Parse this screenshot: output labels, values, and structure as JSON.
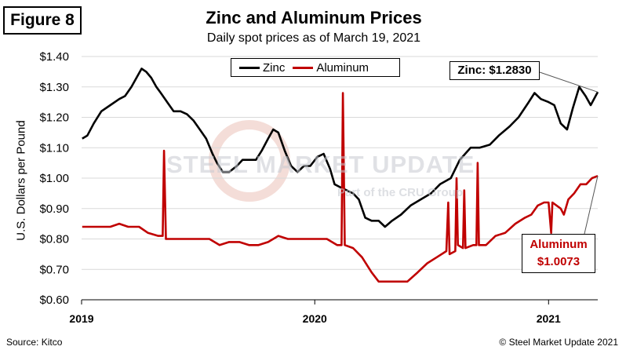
{
  "figure_label": "Figure 8",
  "source": "Source: Kitco",
  "copyright": "© Steel Market Update 2021",
  "watermark": {
    "main": "STEEL MARKET UPDATE",
    "sub": "Part of the CRU Group"
  },
  "callouts": {
    "zinc": "Zinc: $1.2830",
    "aluminum_line1": "Aluminum",
    "aluminum_line2": "$1.0073"
  },
  "colors": {
    "zinc": "#000000",
    "aluminum": "#c00000"
  },
  "chart_data": {
    "type": "line",
    "title": "Zinc and Aluminum Prices",
    "subtitle": "Daily spot prices as of March 19, 2021",
    "ylabel": "U.S. Dollars per Pound",
    "xlabel": "",
    "ylim": [
      0.6,
      1.4
    ],
    "yticks": [
      0.6,
      0.7,
      0.8,
      0.9,
      1.0,
      1.1,
      1.2,
      1.3,
      1.4
    ],
    "ytick_labels": [
      "$0.60",
      "$0.70",
      "$0.80",
      "$0.90",
      "$1.00",
      "$1.10",
      "$1.20",
      "$1.30",
      "$1.40"
    ],
    "xlim": [
      "2019-01-01",
      "2021-03-19"
    ],
    "xticks": [
      "2019-01-01",
      "2020-01-01",
      "2021-01-01"
    ],
    "xtick_labels": [
      "2019",
      "2020",
      "2021"
    ],
    "grid": "horizontal",
    "legend": "top-center",
    "series": [
      {
        "name": "Zinc",
        "color": "#000000",
        "points": [
          [
            "2019-01-02",
            1.13
          ],
          [
            "2019-01-10",
            1.14
          ],
          [
            "2019-01-20",
            1.18
          ],
          [
            "2019-02-01",
            1.22
          ],
          [
            "2019-02-15",
            1.24
          ],
          [
            "2019-03-01",
            1.26
          ],
          [
            "2019-03-10",
            1.27
          ],
          [
            "2019-03-20",
            1.3
          ],
          [
            "2019-03-28",
            1.33
          ],
          [
            "2019-04-05",
            1.36
          ],
          [
            "2019-04-12",
            1.35
          ],
          [
            "2019-04-20",
            1.33
          ],
          [
            "2019-04-28",
            1.3
          ],
          [
            "2019-05-05",
            1.28
          ],
          [
            "2019-05-15",
            1.25
          ],
          [
            "2019-05-25",
            1.22
          ],
          [
            "2019-06-05",
            1.22
          ],
          [
            "2019-06-15",
            1.21
          ],
          [
            "2019-06-25",
            1.19
          ],
          [
            "2019-07-05",
            1.16
          ],
          [
            "2019-07-15",
            1.13
          ],
          [
            "2019-07-25",
            1.08
          ],
          [
            "2019-08-01",
            1.05
          ],
          [
            "2019-08-10",
            1.02
          ],
          [
            "2019-08-20",
            1.02
          ],
          [
            "2019-09-01",
            1.04
          ],
          [
            "2019-09-10",
            1.06
          ],
          [
            "2019-09-20",
            1.06
          ],
          [
            "2019-10-01",
            1.06
          ],
          [
            "2019-10-10",
            1.09
          ],
          [
            "2019-10-20",
            1.13
          ],
          [
            "2019-10-28",
            1.16
          ],
          [
            "2019-11-05",
            1.15
          ],
          [
            "2019-11-15",
            1.09
          ],
          [
            "2019-11-25",
            1.04
          ],
          [
            "2019-12-05",
            1.02
          ],
          [
            "2019-12-15",
            1.04
          ],
          [
            "2019-12-25",
            1.04
          ],
          [
            "2020-01-05",
            1.07
          ],
          [
            "2020-01-15",
            1.08
          ],
          [
            "2020-01-25",
            1.03
          ],
          [
            "2020-02-01",
            0.98
          ],
          [
            "2020-02-10",
            0.97
          ],
          [
            "2020-02-20",
            0.96
          ],
          [
            "2020-03-01",
            0.95
          ],
          [
            "2020-03-10",
            0.93
          ],
          [
            "2020-03-20",
            0.87
          ],
          [
            "2020-03-30",
            0.86
          ],
          [
            "2020-04-10",
            0.86
          ],
          [
            "2020-04-20",
            0.84
          ],
          [
            "2020-05-01",
            0.86
          ],
          [
            "2020-05-15",
            0.88
          ],
          [
            "2020-05-30",
            0.91
          ],
          [
            "2020-06-15",
            0.93
          ],
          [
            "2020-07-01",
            0.95
          ],
          [
            "2020-07-15",
            0.98
          ],
          [
            "2020-08-01",
            1.0
          ],
          [
            "2020-08-15",
            1.06
          ],
          [
            "2020-09-01",
            1.1
          ],
          [
            "2020-09-15",
            1.1
          ],
          [
            "2020-10-01",
            1.11
          ],
          [
            "2020-10-15",
            1.14
          ],
          [
            "2020-11-01",
            1.17
          ],
          [
            "2020-11-15",
            1.2
          ],
          [
            "2020-12-01",
            1.25
          ],
          [
            "2020-12-10",
            1.28
          ],
          [
            "2020-12-20",
            1.26
          ],
          [
            "2021-01-01",
            1.25
          ],
          [
            "2021-01-10",
            1.24
          ],
          [
            "2021-01-20",
            1.18
          ],
          [
            "2021-01-30",
            1.16
          ],
          [
            "2021-02-08",
            1.23
          ],
          [
            "2021-02-18",
            1.3
          ],
          [
            "2021-02-28",
            1.27
          ],
          [
            "2021-03-08",
            1.24
          ],
          [
            "2021-03-19",
            1.283
          ]
        ]
      },
      {
        "name": "Aluminum",
        "color": "#c00000",
        "points": [
          [
            "2019-01-02",
            0.84
          ],
          [
            "2019-01-15",
            0.84
          ],
          [
            "2019-02-01",
            0.84
          ],
          [
            "2019-02-15",
            0.84
          ],
          [
            "2019-03-01",
            0.85
          ],
          [
            "2019-03-15",
            0.84
          ],
          [
            "2019-04-01",
            0.84
          ],
          [
            "2019-04-15",
            0.82
          ],
          [
            "2019-05-01",
            0.81
          ],
          [
            "2019-05-08",
            0.81
          ],
          [
            "2019-05-10",
            1.09
          ],
          [
            "2019-05-13",
            0.8
          ],
          [
            "2019-05-25",
            0.8
          ],
          [
            "2019-06-05",
            0.8
          ],
          [
            "2019-06-20",
            0.8
          ],
          [
            "2019-07-05",
            0.8
          ],
          [
            "2019-07-20",
            0.8
          ],
          [
            "2019-08-05",
            0.78
          ],
          [
            "2019-08-20",
            0.79
          ],
          [
            "2019-09-05",
            0.79
          ],
          [
            "2019-09-20",
            0.78
          ],
          [
            "2019-10-05",
            0.78
          ],
          [
            "2019-10-20",
            0.79
          ],
          [
            "2019-11-05",
            0.81
          ],
          [
            "2019-11-20",
            0.8
          ],
          [
            "2019-12-05",
            0.8
          ],
          [
            "2019-12-20",
            0.8
          ],
          [
            "2020-01-05",
            0.8
          ],
          [
            "2020-01-20",
            0.8
          ],
          [
            "2020-02-05",
            0.78
          ],
          [
            "2020-02-12",
            0.78
          ],
          [
            "2020-02-14",
            1.28
          ],
          [
            "2020-02-17",
            0.78
          ],
          [
            "2020-03-01",
            0.77
          ],
          [
            "2020-03-15",
            0.74
          ],
          [
            "2020-03-30",
            0.69
          ],
          [
            "2020-04-10",
            0.66
          ],
          [
            "2020-04-25",
            0.66
          ],
          [
            "2020-05-10",
            0.66
          ],
          [
            "2020-05-25",
            0.66
          ],
          [
            "2020-06-10",
            0.69
          ],
          [
            "2020-06-25",
            0.72
          ],
          [
            "2020-07-10",
            0.74
          ],
          [
            "2020-07-25",
            0.76
          ],
          [
            "2020-07-28",
            0.92
          ],
          [
            "2020-07-30",
            0.75
          ],
          [
            "2020-08-08",
            0.76
          ],
          [
            "2020-08-10",
            1.0
          ],
          [
            "2020-08-12",
            0.78
          ],
          [
            "2020-08-20",
            0.77
          ],
          [
            "2020-08-22",
            0.96
          ],
          [
            "2020-08-24",
            0.77
          ],
          [
            "2020-09-05",
            0.78
          ],
          [
            "2020-09-10",
            0.78
          ],
          [
            "2020-09-12",
            1.05
          ],
          [
            "2020-09-14",
            0.78
          ],
          [
            "2020-09-25",
            0.78
          ],
          [
            "2020-10-10",
            0.81
          ],
          [
            "2020-10-25",
            0.82
          ],
          [
            "2020-11-10",
            0.85
          ],
          [
            "2020-11-25",
            0.87
          ],
          [
            "2020-12-05",
            0.88
          ],
          [
            "2020-12-15",
            0.91
          ],
          [
            "2020-12-25",
            0.92
          ],
          [
            "2021-01-01",
            0.92
          ],
          [
            "2021-01-05",
            0.82
          ],
          [
            "2021-01-07",
            0.92
          ],
          [
            "2021-01-20",
            0.9
          ],
          [
            "2021-01-25",
            0.88
          ],
          [
            "2021-02-01",
            0.93
          ],
          [
            "2021-02-10",
            0.95
          ],
          [
            "2021-02-20",
            0.98
          ],
          [
            "2021-03-01",
            0.98
          ],
          [
            "2021-03-10",
            1.0
          ],
          [
            "2021-03-19",
            1.0073
          ]
        ]
      }
    ]
  }
}
